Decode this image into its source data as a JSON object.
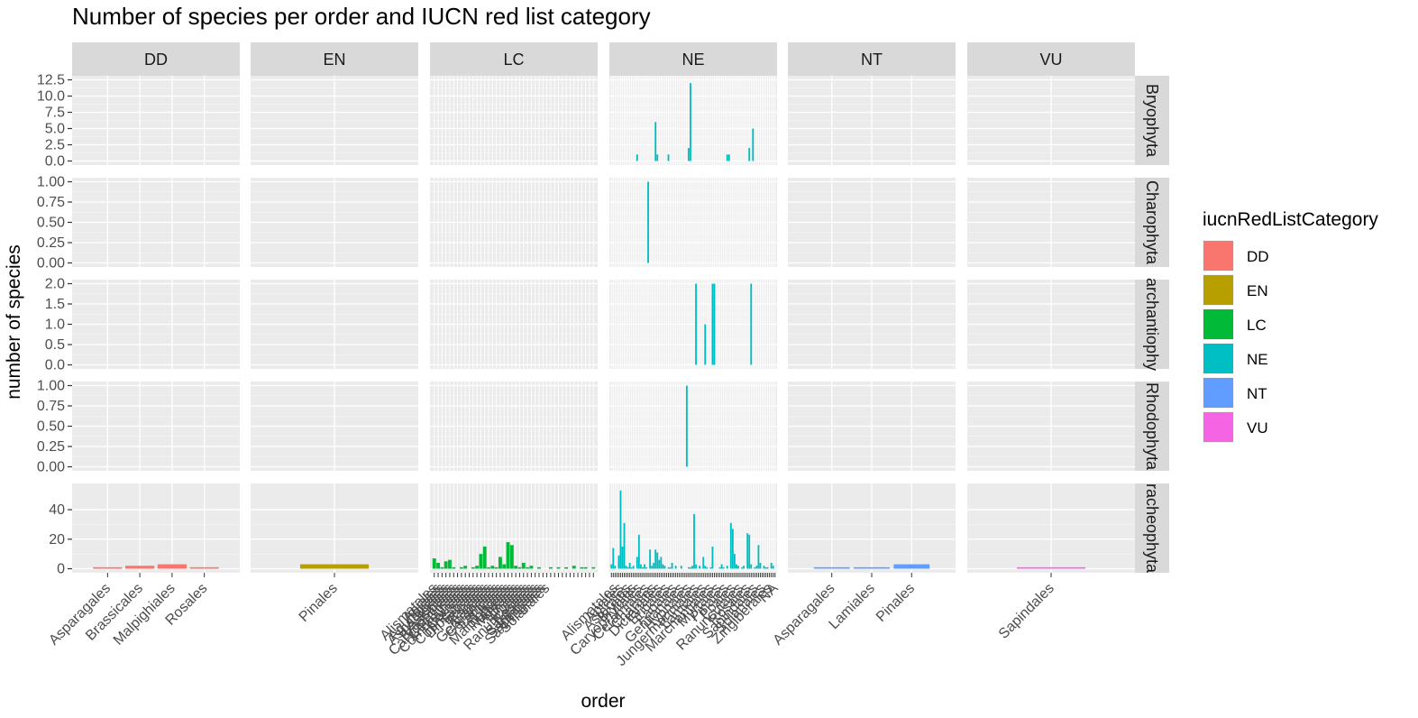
{
  "chart_data": {
    "type": "bar",
    "title": "Number of species per order and IUCN red list category",
    "xlabel": "order",
    "ylabel": "number of species",
    "legend": {
      "title": "iucnRedListCategory",
      "placement": "right",
      "items": [
        {
          "label": "DD",
          "color": "#F8766D"
        },
        {
          "label": "EN",
          "color": "#B79F00"
        },
        {
          "label": "LC",
          "color": "#00BA38"
        },
        {
          "label": "NE",
          "color": "#00BFC4"
        },
        {
          "label": "NT",
          "color": "#619CFF"
        },
        {
          "label": "VU",
          "color": "#F564E3"
        }
      ]
    },
    "facet_columns": [
      "DD",
      "EN",
      "LC",
      "NE",
      "NT",
      "VU"
    ],
    "facet_rows": [
      "Bryophyta",
      "Charophyta",
      "Marchantiophyta",
      "Rhodophyta",
      "Tracheophyta"
    ],
    "row_strip_labels": [
      "Bryophyta",
      "Charophyta",
      "archantiophy",
      "Rhodophyta",
      "racheophyta"
    ],
    "rows": [
      {
        "ylim": [
          0,
          12.5
        ],
        "ticks": [
          "0.0",
          "2.5",
          "5.0",
          "7.5",
          "10.0",
          "12.5"
        ],
        "tick_values": [
          0,
          2.5,
          5,
          7.5,
          10,
          12.5
        ]
      },
      {
        "ylim": [
          0,
          1.0
        ],
        "ticks": [
          "0.00",
          "0.25",
          "0.50",
          "0.75",
          "1.00"
        ],
        "tick_values": [
          0,
          0.25,
          0.5,
          0.75,
          1.0
        ]
      },
      {
        "ylim": [
          0,
          2.0
        ],
        "ticks": [
          "0.0",
          "0.5",
          "1.0",
          "1.5",
          "2.0"
        ],
        "tick_values": [
          0,
          0.5,
          1.0,
          1.5,
          2.0
        ]
      },
      {
        "ylim": [
          0,
          1.0
        ],
        "ticks": [
          "0.00",
          "0.25",
          "0.50",
          "0.75",
          "1.00"
        ],
        "tick_values": [
          0,
          0.25,
          0.5,
          0.75,
          1.0
        ]
      },
      {
        "ylim": [
          0,
          55
        ],
        "ticks": [
          "0",
          "20",
          "40"
        ],
        "tick_values": [
          0,
          20,
          40
        ]
      }
    ],
    "columns": [
      {
        "category": "DD",
        "categories": [
          "Asparagales",
          "Brassicales",
          "Malpighiales",
          "Rosales"
        ],
        "label_positions": [
          0,
          1,
          2,
          3
        ],
        "values": {
          "Tracheophyta": [
            1,
            2,
            3,
            1
          ]
        }
      },
      {
        "category": "EN",
        "categories": [
          "Pinales"
        ],
        "label_positions": [
          0
        ],
        "values": {
          "Tracheophyta": [
            3
          ]
        }
      },
      {
        "category": "LC",
        "n_categories": 42,
        "categories": [
          "Alismatales",
          "Apiales",
          "Aquifoliales",
          "Asparagales",
          "Asterales",
          "Brassicales",
          "Caryophyllales",
          "Celastrales",
          "Commelinales",
          "Cornales",
          "Cupressales",
          "Dipsacales",
          "Ericales",
          "Fabales",
          "Fagales",
          "Gentianales",
          "Geraniales",
          "Lamiales",
          "Liliales",
          "Malpighiales",
          "Malvales",
          "Myrtales",
          "Pinales",
          "Poales",
          "Ranunculales",
          "Rosales",
          "Santalales",
          "Sapindales",
          "Saxifragales",
          "Solanales"
        ],
        "label_positions": [
          0,
          1,
          2,
          3,
          4,
          5,
          6,
          7,
          8,
          9,
          10,
          11,
          12,
          13,
          14,
          15,
          16,
          17,
          18,
          19,
          20,
          21,
          22,
          23,
          24,
          25,
          26,
          27,
          28,
          29
        ],
        "values": {
          "Tracheophyta": [
            7,
            4,
            1,
            5,
            6,
            1,
            0,
            1,
            2,
            0,
            1,
            2,
            10,
            15,
            1,
            2,
            1,
            8,
            3,
            18,
            16,
            2,
            1,
            4,
            1,
            2,
            0,
            1,
            0,
            0,
            1,
            0,
            1,
            0,
            1,
            0,
            2,
            0,
            1,
            1,
            0,
            1
          ]
        }
      },
      {
        "category": "NE",
        "n_categories": 90,
        "categories": [
          "Alismatales",
          "Apiales",
          "Asterales",
          "Bryales",
          "Caryophyllales",
          "Ceramiales",
          "Charales",
          "Dicranales",
          "Ericales",
          "Fabales",
          "Gentianales",
          "Hypnales",
          "Jungermanniales",
          "Lamiales",
          "Marchantiales",
          "Myrtales",
          "Pinales",
          "Poales",
          "Ranunculales",
          "Rosales",
          "Sapindales",
          "Solanales",
          "Zingiberales",
          "NA"
        ],
        "label_positions": [
          2,
          5,
          9,
          12,
          15,
          19,
          23,
          26,
          30,
          34,
          38,
          42,
          46,
          50,
          54,
          58,
          62,
          66,
          70,
          74,
          78,
          82,
          86,
          89
        ],
        "values": {
          "Bryophyta": [
            0,
            0,
            0,
            0,
            0,
            0,
            0,
            0,
            0,
            0,
            0,
            0,
            0,
            0,
            1,
            0,
            0,
            0,
            0,
            0,
            0,
            0,
            0,
            0,
            6,
            1,
            0,
            0,
            0,
            0,
            0,
            1,
            0,
            0,
            0,
            0,
            0,
            0,
            0,
            0,
            0,
            0,
            2,
            12,
            0,
            0,
            0,
            0,
            0,
            0,
            0,
            0,
            0,
            0,
            0,
            0,
            0,
            0,
            0,
            0,
            0,
            0,
            0,
            1,
            1,
            0,
            0,
            0,
            0,
            0,
            0,
            0,
            0,
            0,
            0,
            2,
            0,
            5,
            0,
            0,
            0,
            0,
            0,
            0,
            0,
            0,
            0,
            0,
            0,
            0
          ],
          "Charophyta": [
            0,
            0,
            0,
            0,
            0,
            0,
            0,
            0,
            0,
            0,
            0,
            0,
            0,
            0,
            0,
            0,
            0,
            0,
            0,
            0,
            1,
            0,
            0,
            0,
            0,
            0,
            0,
            0,
            0,
            0,
            0,
            0,
            0,
            0,
            0,
            0,
            0,
            0,
            0,
            0,
            0,
            0,
            0,
            0,
            0,
            0,
            0,
            0,
            0,
            0,
            0,
            0,
            0,
            0,
            0,
            0,
            0,
            0,
            0,
            0,
            0,
            0,
            0,
            0,
            0,
            0,
            0,
            0,
            0,
            0,
            0,
            0,
            0,
            0,
            0,
            0,
            0,
            0,
            0,
            0,
            0,
            0,
            0,
            0,
            0,
            0,
            0,
            0,
            0,
            0
          ],
          "Marchantiophyta": [
            0,
            0,
            0,
            0,
            0,
            0,
            0,
            0,
            0,
            0,
            0,
            0,
            0,
            0,
            0,
            0,
            0,
            0,
            0,
            0,
            0,
            0,
            0,
            0,
            0,
            0,
            0,
            0,
            0,
            0,
            0,
            0,
            0,
            0,
            0,
            0,
            0,
            0,
            0,
            0,
            0,
            0,
            0,
            0,
            0,
            0,
            2,
            0,
            0,
            0,
            0,
            1,
            0,
            0,
            0,
            2,
            2,
            0,
            0,
            0,
            0,
            0,
            0,
            0,
            0,
            0,
            0,
            0,
            0,
            0,
            0,
            0,
            0,
            0,
            0,
            0,
            2,
            0,
            0,
            0,
            0,
            0,
            0,
            0,
            0,
            0,
            0,
            0,
            0,
            0
          ],
          "Rhodophyta": [
            0,
            0,
            0,
            0,
            0,
            0,
            0,
            0,
            0,
            0,
            0,
            0,
            0,
            0,
            0,
            0,
            0,
            0,
            0,
            0,
            0,
            0,
            0,
            0,
            0,
            0,
            0,
            0,
            0,
            0,
            0,
            0,
            0,
            0,
            0,
            0,
            0,
            0,
            0,
            0,
            0,
            1,
            0,
            0,
            0,
            0,
            0,
            0,
            0,
            0,
            0,
            0,
            0,
            0,
            0,
            0,
            0,
            0,
            0,
            0,
            0,
            0,
            0,
            0,
            0,
            0,
            0,
            0,
            0,
            0,
            0,
            0,
            0,
            0,
            0,
            0,
            0,
            0,
            0,
            0,
            0,
            0,
            0,
            0,
            0,
            0,
            0,
            0,
            0,
            0
          ],
          "Tracheophyta": [
            3,
            14,
            2,
            0,
            9,
            53,
            15,
            31,
            2,
            1,
            4,
            1,
            2,
            0,
            8,
            23,
            3,
            1,
            3,
            1,
            0,
            13,
            2,
            4,
            13,
            11,
            6,
            8,
            3,
            2,
            0,
            1,
            1,
            4,
            0,
            2,
            0,
            0,
            2,
            0,
            0,
            0,
            1,
            1,
            2,
            37,
            3,
            0,
            2,
            0,
            8,
            2,
            1,
            0,
            1,
            15,
            0,
            0,
            0,
            1,
            3,
            1,
            0,
            2,
            0,
            31,
            27,
            10,
            3,
            2,
            0,
            1,
            2,
            0,
            24,
            23,
            3,
            0,
            1,
            2,
            16,
            4,
            0,
            2,
            1,
            1,
            0,
            4,
            2,
            0
          ]
        }
      },
      {
        "category": "NT",
        "categories": [
          "Asparagales",
          "Lamiales",
          "Pinales"
        ],
        "label_positions": [
          0,
          1,
          2
        ],
        "values": {
          "Tracheophyta": [
            1,
            1,
            3
          ]
        }
      },
      {
        "category": "VU",
        "categories": [
          "Sapindales"
        ],
        "label_positions": [
          0
        ],
        "values": {
          "Tracheophyta": [
            1
          ]
        }
      }
    ]
  }
}
